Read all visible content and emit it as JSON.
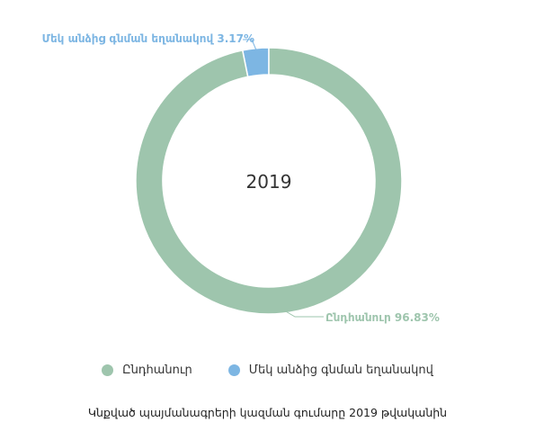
{
  "chart_data": {
    "type": "pie",
    "center_label": "2019",
    "slices": [
      {
        "name": "Ընդհանուր",
        "value": 96.83,
        "label": "Ընդհանուր 96.83%",
        "color": "#9ec5ad"
      },
      {
        "name": "Մեկ անձից գնման եղանակով",
        "value": 3.17,
        "label": "Մեկ անձից գնման եղանակով 3.17%",
        "color": "#7db6e3"
      }
    ],
    "legend_position": "bottom",
    "caption": "Կնքված պայմանագրերի կազման գումարը 2019 թվականին"
  }
}
